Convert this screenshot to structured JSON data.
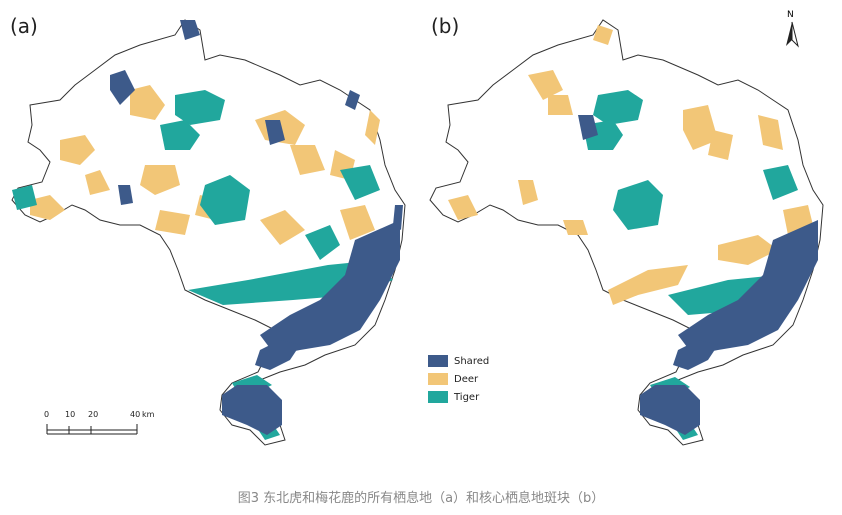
{
  "panels": [
    {
      "label": "(a)"
    },
    {
      "label": "(b)"
    }
  ],
  "legend": {
    "items": [
      {
        "label": "Shared",
        "color": "#3d5a8a"
      },
      {
        "label": "Deer",
        "color": "#f2c677"
      },
      {
        "label": "Tiger",
        "color": "#21a79d"
      }
    ]
  },
  "scale_bar": {
    "ticks": [
      "0",
      "10",
      "20",
      "40"
    ],
    "unit": "km"
  },
  "north_arrow": {
    "label": "N"
  },
  "caption": "图3 东北虎和梅花鹿的所有栖息地（a）和核心栖息地斑块（b）"
}
